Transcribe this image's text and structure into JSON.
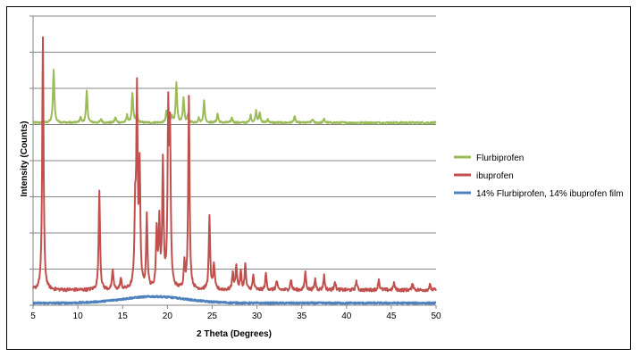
{
  "chart_data": {
    "type": "line",
    "title": "",
    "xlabel": "2 Theta (Degrees)",
    "ylabel": "Intensity (Counts)",
    "xlim": [
      5,
      50
    ],
    "x_ticks": [
      5,
      10,
      15,
      20,
      25,
      30,
      35,
      40,
      45,
      50
    ],
    "ylim": [
      0,
      8000
    ],
    "y_ticks": [
      0,
      1000,
      2000,
      3000,
      4000,
      5000,
      6000,
      7000,
      8000
    ],
    "y_tick_labels_shown": false,
    "grid": "horizontal",
    "legend_position": "right",
    "series": [
      {
        "name": "Flurbiprofen",
        "color": "#9BBB59",
        "baseline": 5050,
        "noise": 25,
        "peaks": [
          [
            7.3,
            1450
          ],
          [
            10.3,
            150
          ],
          [
            11.0,
            880
          ],
          [
            12.6,
            100
          ],
          [
            14.2,
            150
          ],
          [
            15.5,
            200
          ],
          [
            16.1,
            820
          ],
          [
            16.6,
            250
          ],
          [
            19.9,
            330
          ],
          [
            20.5,
            200
          ],
          [
            21.0,
            1080
          ],
          [
            21.8,
            700
          ],
          [
            22.3,
            200
          ],
          [
            23.5,
            120
          ],
          [
            24.1,
            600
          ],
          [
            25.6,
            250
          ],
          [
            27.2,
            150
          ],
          [
            29.3,
            200
          ],
          [
            29.9,
            320
          ],
          [
            30.3,
            280
          ],
          [
            31.2,
            100
          ],
          [
            34.2,
            180
          ],
          [
            36.2,
            100
          ],
          [
            37.5,
            100
          ]
        ]
      },
      {
        "name": "ibuprofen",
        "color": "#C0504D",
        "baseline": 420,
        "noise": 45,
        "peaks": [
          [
            6.1,
            7000
          ],
          [
            12.4,
            2750
          ],
          [
            13.9,
            550
          ],
          [
            14.8,
            300
          ],
          [
            16.4,
            2000
          ],
          [
            16.6,
            5250
          ],
          [
            16.9,
            3250
          ],
          [
            17.7,
            2000
          ],
          [
            18.8,
            1600
          ],
          [
            19.1,
            1800
          ],
          [
            19.5,
            3500
          ],
          [
            20.1,
            4700
          ],
          [
            20.3,
            4000
          ],
          [
            21.9,
            700
          ],
          [
            22.4,
            5300
          ],
          [
            24.7,
            2000
          ],
          [
            25.2,
            700
          ],
          [
            27.3,
            500
          ],
          [
            27.7,
            700
          ],
          [
            28.2,
            500
          ],
          [
            28.7,
            700
          ],
          [
            29.6,
            400
          ],
          [
            31.0,
            450
          ],
          [
            32.2,
            250
          ],
          [
            33.8,
            300
          ],
          [
            35.4,
            500
          ],
          [
            36.5,
            300
          ],
          [
            37.5,
            400
          ],
          [
            38.7,
            250
          ],
          [
            41.1,
            250
          ],
          [
            43.6,
            300
          ],
          [
            45.3,
            200
          ],
          [
            47.4,
            200
          ],
          [
            49.3,
            150
          ]
        ]
      },
      {
        "name": "14% Flurbiprofen, 14% ibuprofen film",
        "color": "#4F81BD",
        "baseline": 60,
        "noise": 20,
        "hump": {
          "center": 18.5,
          "height": 180,
          "width": 5
        },
        "peaks": []
      }
    ]
  }
}
